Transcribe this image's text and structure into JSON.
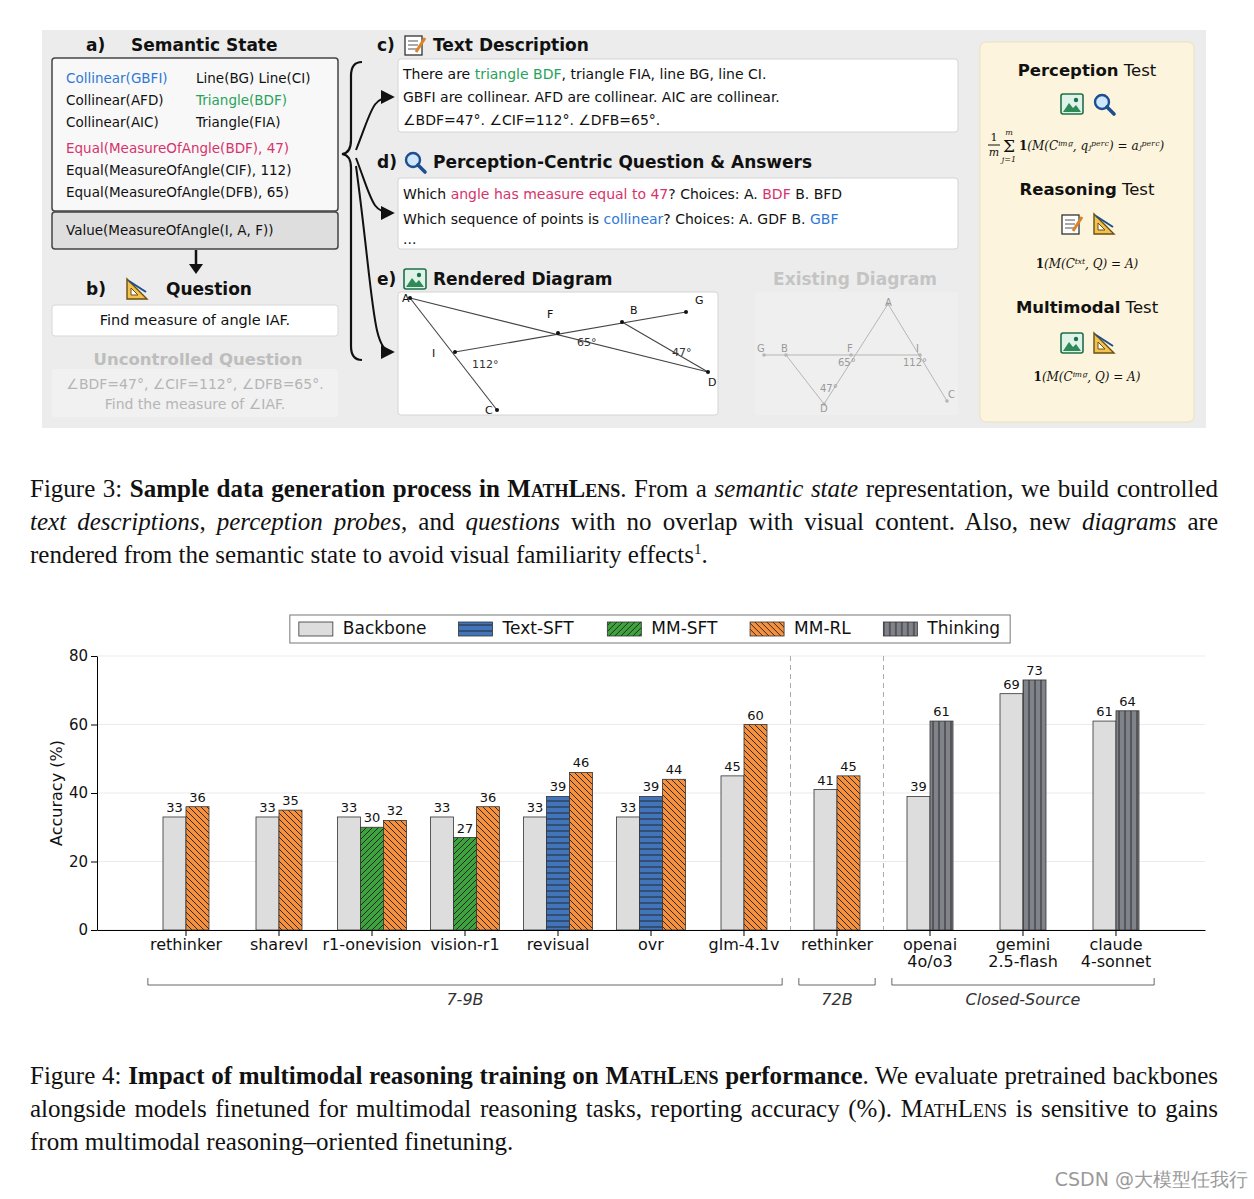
{
  "figure3": {
    "panel_a": {
      "letter": "a)",
      "title": "Semantic State",
      "rows": [
        [
          {
            "text": "Collinear(GBFI)",
            "color": "#2f78d6"
          },
          {
            "text": "Line(BG) Line(CI)"
          }
        ],
        [
          {
            "text": "Collinear(AFD)"
          },
          {
            "text": "Triangle(BDF)",
            "color": "#27a35a"
          }
        ],
        [
          {
            "text": "Collinear(AIC)"
          },
          {
            "text": "Triangle(FIA)"
          }
        ],
        [
          {
            "text": "Equal(MeasureOfAngle(BDF), 47)",
            "color": "#d6336c"
          }
        ],
        [
          {
            "text": "Equal(MeasureOfAngle(CIF), 112)"
          }
        ],
        [
          {
            "text": "Equal(MeasureOfAngle(DFB), 65)"
          }
        ]
      ],
      "value": "Value(MeasureOfAngle(I, A, F))"
    },
    "panel_b": {
      "letter": "b)",
      "title": "Question",
      "question": "Find measure of angle IAF.",
      "uncontrolled_title": "Uncontrolled Question",
      "uncontrolled_lines": [
        "∠BDF=47°, ∠CIF=112°, ∠DFB=65°.",
        "Find the measure of ∠IAF."
      ]
    },
    "panel_c": {
      "letter": "c)",
      "title": "Text Description",
      "lines": [
        [
          {
            "text": "There are "
          },
          {
            "text": "triangle BDF",
            "color": "#27a35a"
          },
          {
            "text": ", triangle FIA, line BG, line CI."
          }
        ],
        [
          {
            "text": "GBFI are collinear. AFD are collinear. AIC are collinear."
          }
        ],
        [
          {
            "text": "∠BDF=47°. ∠CIF=112°. ∠DFB=65°."
          }
        ]
      ]
    },
    "panel_d": {
      "letter": "d)",
      "title": "Perception-Centric Question & Answers",
      "lines": [
        [
          {
            "text": "Which "
          },
          {
            "text": "angle has measure equal to 47",
            "color": "#d6336c"
          },
          {
            "text": "? Choices: A. "
          },
          {
            "text": "BDF",
            "color": "#d6336c"
          },
          {
            "text": " B. BFD"
          }
        ],
        [
          {
            "text": "Which sequence of points is "
          },
          {
            "text": "collinear",
            "color": "#2f78d6"
          },
          {
            "text": "? Choices: A. GDF B. "
          },
          {
            "text": "GBF",
            "color": "#2f78d6"
          }
        ],
        [
          {
            "text": "..."
          }
        ]
      ]
    },
    "panel_e": {
      "letter": "e)",
      "title": "Rendered Diagram",
      "points": [
        "A",
        "F",
        "B",
        "G",
        "I",
        "D",
        "C"
      ],
      "angles": [
        "65°",
        "47°",
        "112°"
      ],
      "existing_title": "Existing Diagram",
      "existing_points": [
        "G",
        "B",
        "F",
        "A",
        "I",
        "C",
        "D"
      ],
      "existing_angles": [
        "65°",
        "47°",
        "112°"
      ]
    },
    "tests": [
      {
        "title": "Perception Test",
        "formula": {
          "fraction": [
            "1",
            "m"
          ],
          "sum": "Σ",
          "upper": "m",
          "lower": "j=1",
          "indicator": "1",
          "body": "(M(Cⁱᵐᵍ, qⱼᵖᵉʳᶜ) = aⱼᵖᵉʳᶜ)"
        }
      },
      {
        "title": "Reasoning Test",
        "formula": {
          "indicator": "1",
          "body": "(M(Cᵗˣᵗ, Q) = A)"
        }
      },
      {
        "title": "Multimodal Test",
        "formula": {
          "indicator": "1",
          "body": "(M(Cⁱᵐᵍ, Q) = A)"
        }
      }
    ]
  },
  "caption3": [
    {
      "text": "Figure 3: "
    },
    {
      "text": "Sample data generation process in ",
      "style": "bold"
    },
    {
      "text": "MathLens",
      "style": "bold-caps"
    },
    {
      "text": ". From a "
    },
    {
      "text": "semantic state",
      "style": "italic"
    },
    {
      "text": " representation, we build controlled "
    },
    {
      "text": "text descriptions",
      "style": "italic"
    },
    {
      "text": ", "
    },
    {
      "text": "perception probes",
      "style": "italic"
    },
    {
      "text": ", and "
    },
    {
      "text": "questions",
      "style": "italic"
    },
    {
      "text": " with no overlap with visual content. Also, new "
    },
    {
      "text": "diagrams",
      "style": "italic"
    },
    {
      "text": " are rendered from the semantic state to avoid visual familiarity effects"
    },
    {
      "text": "1",
      "style": "sup"
    },
    {
      "text": "."
    }
  ],
  "chart_data": {
    "type": "bar",
    "categories": [
      "rethinker",
      "sharevl",
      "r1-onevision",
      "vision-r1",
      "revisual",
      "ovr",
      "glm-4.1v",
      "rethinker",
      "openai 4o/o3",
      "gemini 2.5-flash",
      "claude 4-sonnet"
    ],
    "series": [
      {
        "name": "Backbone",
        "color": "#dddddd",
        "values": [
          33,
          33,
          33,
          33,
          33,
          33,
          45,
          41,
          39,
          69,
          61
        ]
      },
      {
        "name": "Text-SFT",
        "color": "#4174b8",
        "values": [
          null,
          null,
          null,
          null,
          39,
          39,
          null,
          null,
          null,
          null,
          null
        ]
      },
      {
        "name": "MM-SFT",
        "color": "#3ea33e",
        "values": [
          null,
          null,
          30,
          27,
          null,
          null,
          null,
          null,
          null,
          null,
          null
        ]
      },
      {
        "name": "MM-RL",
        "color": "#f5903e",
        "values": [
          36,
          35,
          32,
          36,
          46,
          44,
          60,
          45,
          null,
          null,
          null
        ]
      },
      {
        "name": "Thinking",
        "color": "#80848a",
        "values": [
          null,
          null,
          null,
          null,
          null,
          null,
          null,
          null,
          61,
          73,
          64
        ]
      }
    ],
    "groups": [
      {
        "label": "7-9B",
        "count": 7
      },
      {
        "label": "72B",
        "count": 1
      },
      {
        "label": "Closed-Source",
        "count": 3
      }
    ],
    "y_label": "Accuracy (%)",
    "ylim": [
      0,
      80
    ],
    "yticks": [
      0,
      20,
      40,
      60,
      80
    ],
    "grid": true,
    "legend": "top",
    "data_labels": true
  },
  "caption4": [
    {
      "text": "Figure 4: "
    },
    {
      "text": "Impact of multimodal reasoning training on ",
      "style": "bold"
    },
    {
      "text": "MathLens",
      "style": "bold-caps"
    },
    {
      "text": " performance",
      "style": "bold"
    },
    {
      "text": ". We evaluate pretrained backbones alongside models finetuned for multimodal reasoning tasks, reporting accuracy (%). "
    },
    {
      "text": "MathLens",
      "style": "caps"
    },
    {
      "text": " is sensitive to gains from multimodal reasoning–oriented finetuning."
    }
  ],
  "watermark": "CSDN @大模型任我行"
}
